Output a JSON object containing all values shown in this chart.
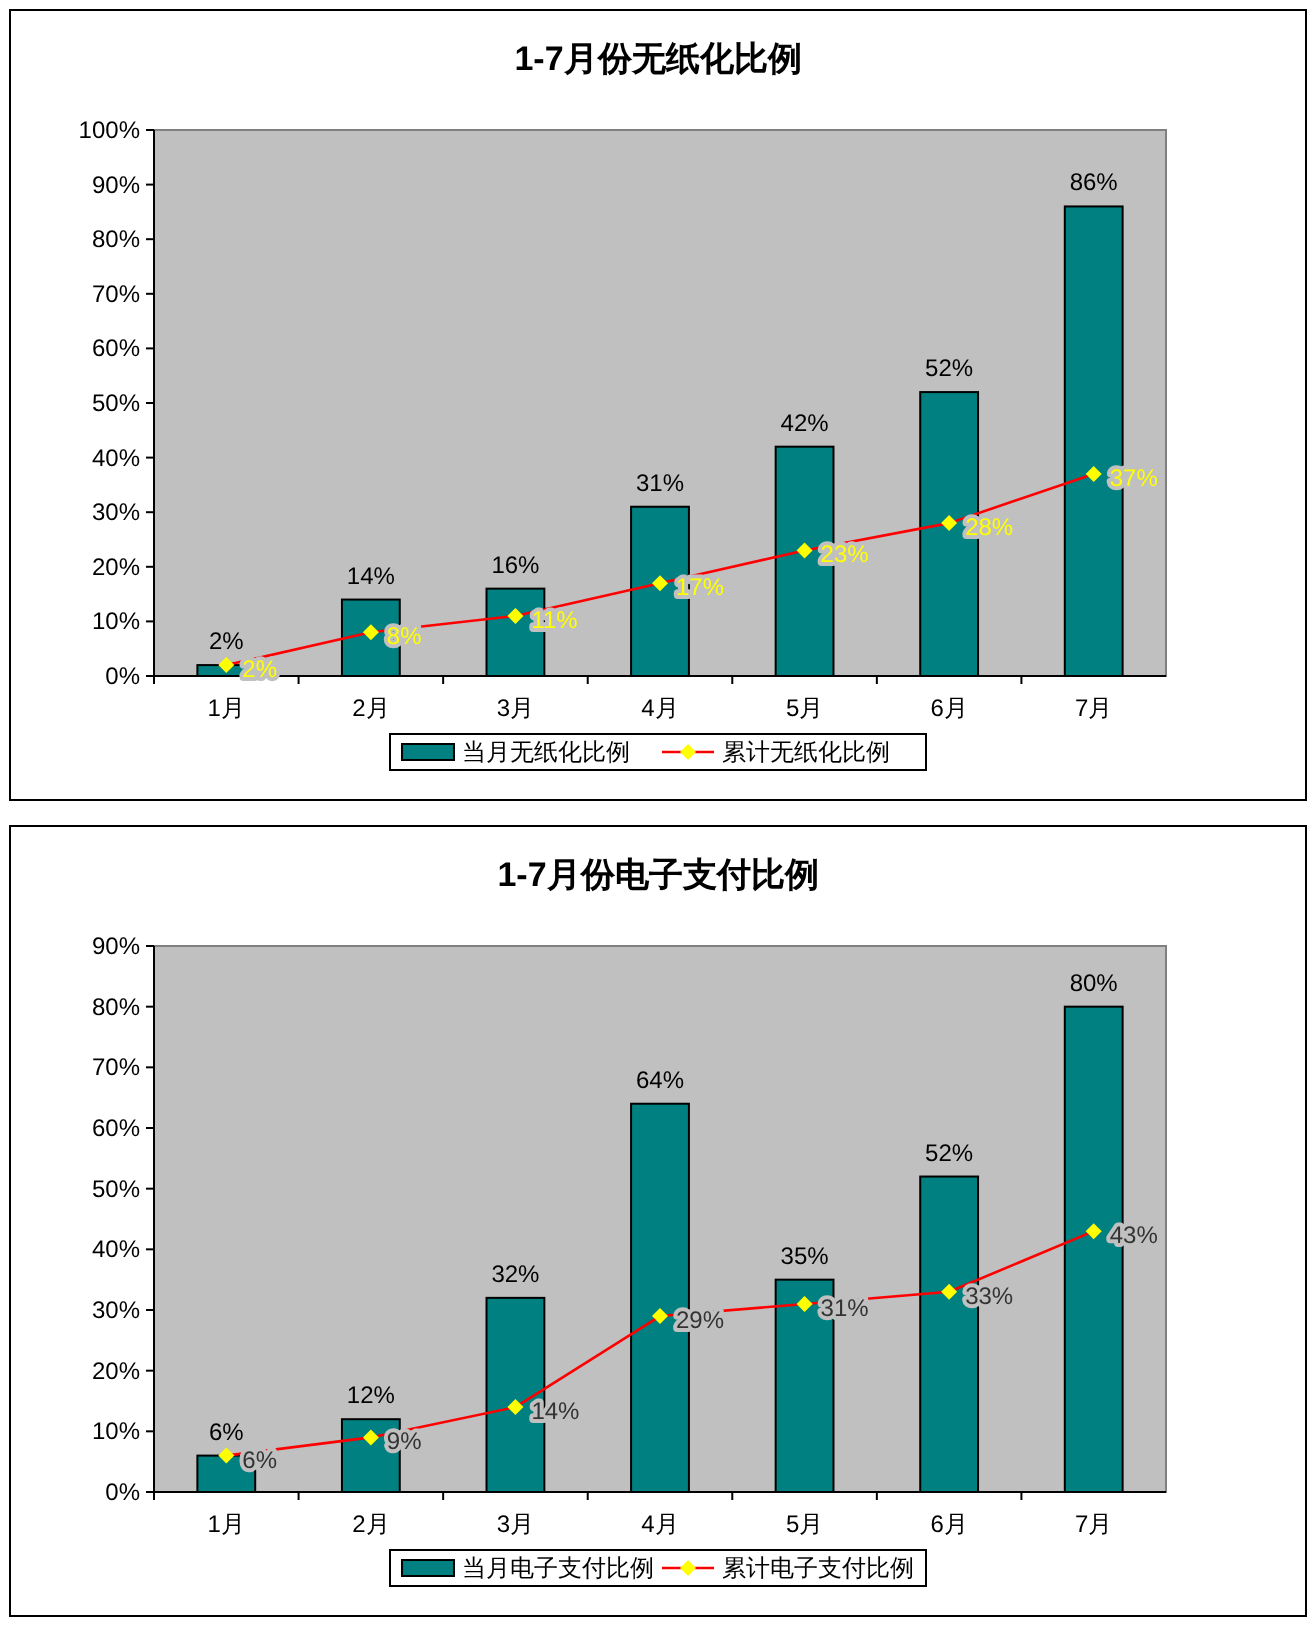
{
  "chart_data": [
    {
      "type": "bar",
      "title": "1-7月份无纸化比例",
      "categories": [
        "1月",
        "2月",
        "3月",
        "4月",
        "5月",
        "6月",
        "7月"
      ],
      "series": [
        {
          "name": "当月无纸化比例",
          "color": "#008080",
          "values": [
            2,
            14,
            16,
            31,
            42,
            52,
            86
          ],
          "value_labels": [
            "2%",
            "14%",
            "16%",
            "31%",
            "42%",
            "52%",
            "86%"
          ]
        },
        {
          "name": "累计无纸化比例",
          "type": "line",
          "color": "#ff0000",
          "values": [
            2,
            8,
            11,
            17,
            23,
            28,
            37
          ],
          "value_labels": [
            "2%",
            "8%",
            "11%",
            "17%",
            "23%",
            "28%",
            "37%"
          ]
        }
      ],
      "ylim": [
        0,
        100
      ],
      "yticks": [
        {
          "value": 0,
          "label": "0%"
        },
        {
          "value": 10,
          "label": "10%"
        },
        {
          "value": 20,
          "label": "20%"
        },
        {
          "value": 30,
          "label": "30%"
        },
        {
          "value": 40,
          "label": "40%"
        },
        {
          "value": 50,
          "label": "50%"
        },
        {
          "value": 60,
          "label": "60%"
        },
        {
          "value": 70,
          "label": "70%"
        },
        {
          "value": 80,
          "label": "80%"
        },
        {
          "value": 90,
          "label": "90%"
        },
        {
          "value": 100,
          "label": "100%"
        }
      ],
      "legend": "bottom",
      "marker": "diamond",
      "grid": false
    },
    {
      "type": "bar",
      "title": "1-7月份电子支付比例",
      "categories": [
        "1月",
        "2月",
        "3月",
        "4月",
        "5月",
        "6月",
        "7月"
      ],
      "series": [
        {
          "name": "当月电子支付比例",
          "color": "#008080",
          "values": [
            6,
            12,
            32,
            64,
            35,
            52,
            80
          ],
          "value_labels": [
            "6%",
            "12%",
            "32%",
            "64%",
            "35%",
            "52%",
            "80%"
          ]
        },
        {
          "name": "累计电子支付比例",
          "type": "line",
          "color": "#ff0000",
          "values": [
            6,
            9,
            14,
            29,
            31,
            33,
            43
          ],
          "value_labels": [
            "6%",
            "9%",
            "14%",
            "29%",
            "31%",
            "33%",
            "43%"
          ]
        }
      ],
      "ylim": [
        0,
        90
      ],
      "yticks": [
        {
          "value": 0,
          "label": "0%"
        },
        {
          "value": 10,
          "label": "10%"
        },
        {
          "value": 20,
          "label": "20%"
        },
        {
          "value": 30,
          "label": "30%"
        },
        {
          "value": 40,
          "label": "40%"
        },
        {
          "value": 50,
          "label": "50%"
        },
        {
          "value": 60,
          "label": "60%"
        },
        {
          "value": 70,
          "label": "70%"
        },
        {
          "value": 80,
          "label": "80%"
        },
        {
          "value": 90,
          "label": "90%"
        }
      ],
      "legend": "bottom",
      "marker": "diamond",
      "grid": false
    }
  ]
}
